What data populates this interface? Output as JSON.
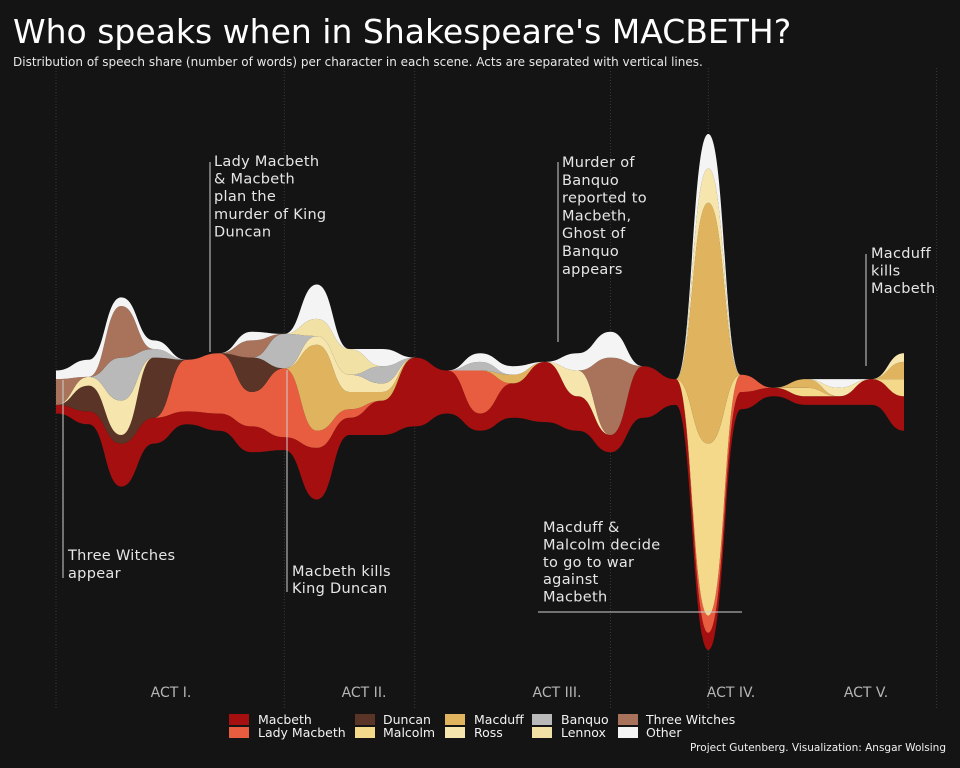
{
  "title": "Who speaks when in Shakespeare's MACBETH?",
  "subtitle": "Distribution of speech share (number of words) per character in each scene. Acts are separated with vertical lines.",
  "credit": "Project Gutenberg. Visualization: Ansgar Wolsing",
  "chart_data": {
    "type": "area",
    "subtype": "streamgraph",
    "x_unit": "scene index (0-27, acts I-V)",
    "acts": [
      {
        "label": "ACT I.",
        "start": 0,
        "end": 7
      },
      {
        "label": "ACT II.",
        "start": 7,
        "end": 11
      },
      {
        "label": "ACT III.",
        "start": 11,
        "end": 17
      },
      {
        "label": "ACT IV.",
        "start": 17,
        "end": 20
      },
      {
        "label": "ACT V.",
        "start": 20,
        "end": 27
      }
    ],
    "series": [
      {
        "name": "Macbeth",
        "color": "#a50f0f",
        "values": [
          1,
          1.5,
          5,
          3,
          1.5,
          2,
          3,
          1.5,
          6,
          2,
          4,
          8,
          5,
          2,
          4,
          7,
          4,
          2,
          6,
          3,
          2,
          2,
          1,
          1,
          1,
          3,
          4
        ]
      },
      {
        "name": "Lady Macbeth",
        "color": "#e85d40",
        "values": [
          0,
          0,
          0,
          0,
          6,
          7,
          4,
          8,
          2,
          1,
          0,
          0,
          0,
          5,
          0,
          0,
          0,
          0,
          0,
          0,
          2,
          2,
          0,
          0,
          0,
          0,
          0
        ]
      },
      {
        "name": "Duncan",
        "color": "#5a3427",
        "values": [
          0,
          3,
          1,
          7,
          0,
          0,
          4,
          0,
          0,
          0,
          0,
          0,
          0,
          0,
          0,
          0,
          0,
          0,
          0,
          0,
          0,
          0,
          0,
          0,
          0,
          0,
          0
        ]
      },
      {
        "name": "Malcolm",
        "color": "#f5d98a",
        "values": [
          0,
          0,
          0,
          0,
          0,
          0,
          0,
          0,
          0,
          0,
          0,
          0,
          0,
          0,
          0,
          0,
          0,
          0,
          0,
          0,
          20,
          0,
          0,
          1,
          0,
          0,
          2
        ]
      },
      {
        "name": "Macduff",
        "color": "#e0b45e",
        "values": [
          0,
          0,
          0,
          0,
          0,
          0,
          0,
          0,
          10,
          2,
          1,
          0,
          0,
          0,
          1,
          0,
          0,
          0,
          0,
          0,
          28,
          0,
          0,
          1,
          0,
          0,
          2
        ]
      },
      {
        "name": "Ross",
        "color": "#f6e6ae",
        "values": [
          0,
          1,
          4,
          0,
          0,
          0,
          0,
          0,
          1,
          2,
          1,
          0,
          0,
          0,
          0,
          0,
          3,
          0,
          0,
          0,
          4,
          0,
          0,
          0,
          1,
          0,
          1
        ]
      },
      {
        "name": "Banquo",
        "color": "#b9b9b9",
        "values": [
          0,
          0,
          5,
          1,
          0,
          0,
          0,
          4,
          0,
          0,
          2,
          0,
          0,
          1,
          0,
          0,
          0,
          0,
          0,
          0,
          0,
          0,
          0,
          0,
          0,
          0,
          0
        ]
      },
      {
        "name": "Lennox",
        "color": "#f1e1a5",
        "values": [
          0,
          0,
          0,
          0,
          0,
          0,
          0,
          0,
          2,
          3,
          0,
          0,
          0,
          0,
          0,
          0,
          0,
          0,
          0,
          0,
          0,
          0,
          0,
          0,
          0,
          0,
          0
        ]
      },
      {
        "name": "Three Witches",
        "color": "#a8735a",
        "values": [
          3,
          0,
          6,
          0,
          0,
          0,
          2,
          0,
          0,
          0,
          0,
          0,
          0,
          0,
          0,
          0,
          0,
          9,
          0,
          0,
          0,
          0,
          0,
          0,
          0,
          0,
          0
        ]
      },
      {
        "name": "Other",
        "color": "#f4f4f4",
        "values": [
          1,
          2,
          1,
          1,
          0,
          0,
          1,
          0,
          4,
          0,
          2,
          0,
          0,
          1,
          1,
          0,
          2,
          3,
          0,
          0,
          4,
          0,
          0,
          0,
          1,
          0,
          0
        ]
      }
    ],
    "annotations": [
      {
        "x": 0.3,
        "lines": [
          "Three Witches",
          "appear"
        ]
      },
      {
        "x": 5.3,
        "lines": [
          "Lady Macbeth",
          "& Macbeth",
          "plan the",
          "murder of King",
          "Duncan"
        ]
      },
      {
        "x": 7.7,
        "lines": [
          "Macbeth kills",
          "King Duncan"
        ]
      },
      {
        "x": 16.0,
        "lines": [
          "Murder of",
          "Banquo",
          "reported to",
          "Macbeth,",
          "Ghost of",
          "Banquo",
          "appears"
        ]
      },
      {
        "x": 20.2,
        "lines": [
          "Macduff &",
          "Malcolm decide",
          "to go to war",
          "against",
          "Macbeth"
        ]
      },
      {
        "x": 26.2,
        "lines": [
          "Macduff",
          "kills",
          "Macbeth"
        ]
      }
    ]
  }
}
